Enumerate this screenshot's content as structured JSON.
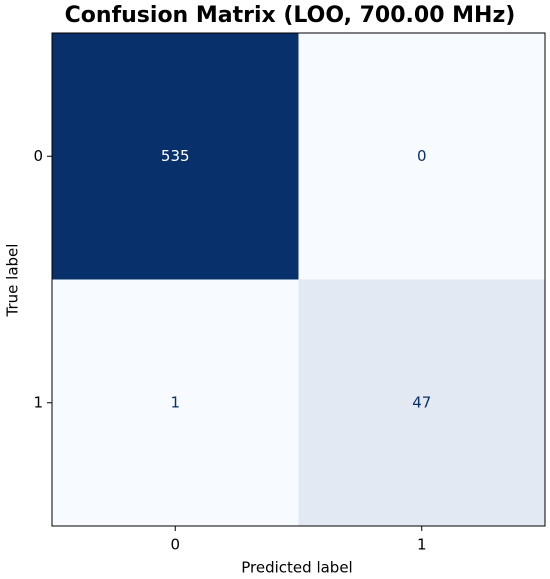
{
  "chart_data": {
    "type": "heatmap",
    "title": "Confusion Matrix (LOO, 700.00 MHz)",
    "xlabel": "Predicted label",
    "ylabel": "True label",
    "x_categories": [
      "0",
      "1"
    ],
    "y_categories": [
      "0",
      "1"
    ],
    "values": [
      [
        535,
        0
      ],
      [
        1,
        47
      ]
    ],
    "cmap": [
      "#f7fbff",
      "#08306b"
    ]
  }
}
